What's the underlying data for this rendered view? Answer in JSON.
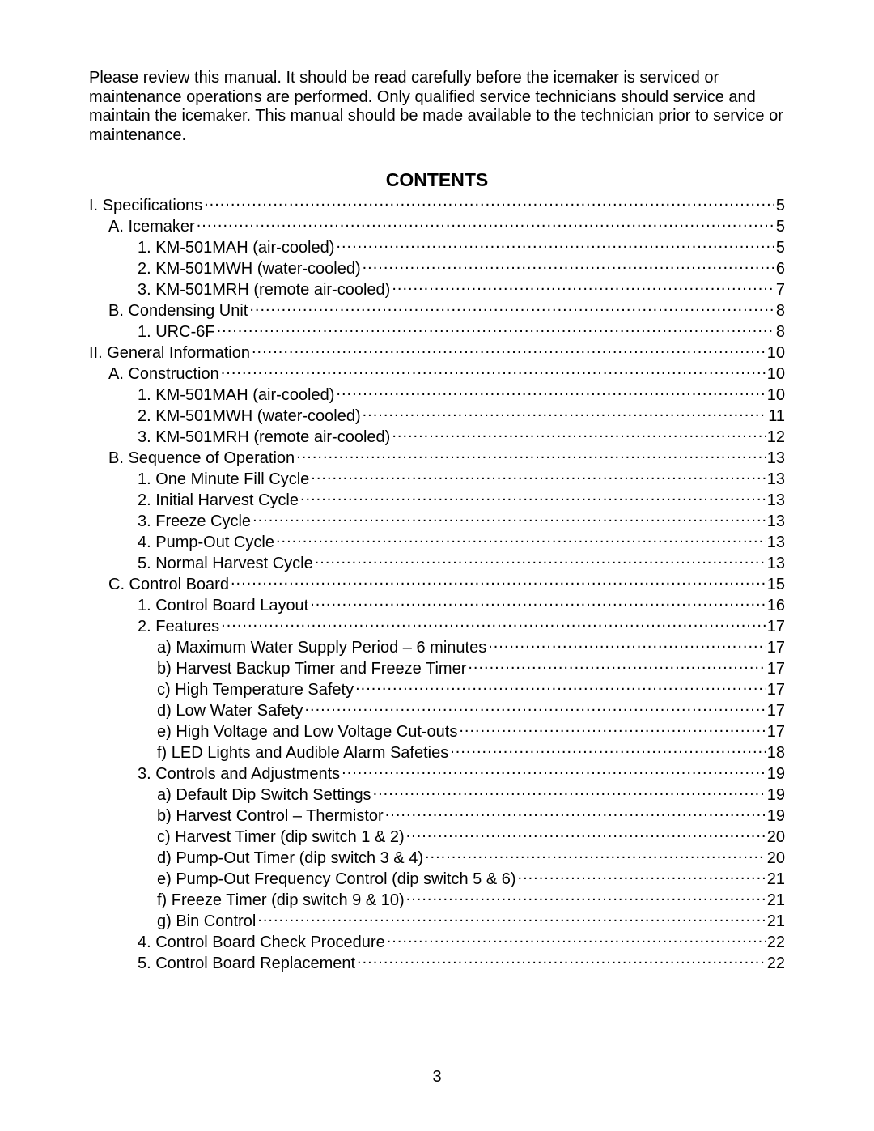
{
  "intro_paragraph": "Please review this manual. It should be read carefully before the icemaker is serviced or maintenance operations are performed. Only qualified service technicians should service and maintain the icemaker. This manual should be made available to the technician prior to service or maintenance.",
  "contents_title": "CONTENTS",
  "page_number": "3",
  "toc": [
    {
      "label": "I. Specifications",
      "page": "5",
      "indent": 0
    },
    {
      "label": "A. Icemaker",
      "page": "5",
      "indent": 1
    },
    {
      "label": "1. KM-501MAH (air-cooled)",
      "page": "5",
      "indent": 2
    },
    {
      "label": "2. KM-501MWH (water-cooled)",
      "page": "6",
      "indent": 2
    },
    {
      "label": "3. KM-501MRH (remote air-cooled)",
      "page": "7",
      "indent": 2
    },
    {
      "label": "B. Condensing Unit",
      "page": "8",
      "indent": 1
    },
    {
      "label": "1. URC-6F",
      "page": "8",
      "indent": 2
    },
    {
      "label": "II. General Information",
      "page": "10",
      "indent": 0
    },
    {
      "label": "A. Construction",
      "page": "10",
      "indent": 1
    },
    {
      "label": "1. KM-501MAH (air-cooled)",
      "page": "10",
      "indent": 2
    },
    {
      "label": "2. KM-501MWH (water-cooled)",
      "page": "11",
      "indent": 2
    },
    {
      "label": "3. KM-501MRH (remote air-cooled)",
      "page": "12",
      "indent": 2
    },
    {
      "label": "B. Sequence of Operation",
      "page": "13",
      "indent": 1
    },
    {
      "label": "1. One Minute Fill Cycle",
      "page": "13",
      "indent": 2
    },
    {
      "label": "2. Initial Harvest Cycle",
      "page": "13",
      "indent": 2
    },
    {
      "label": "3. Freeze Cycle",
      "page": "13",
      "indent": 2
    },
    {
      "label": "4. Pump-Out Cycle",
      "page": "13",
      "indent": 2
    },
    {
      "label": "5. Normal Harvest Cycle",
      "page": "13",
      "indent": 2
    },
    {
      "label": "C. Control Board",
      "page": "15",
      "indent": 1
    },
    {
      "label": "1. Control Board Layout",
      "page": "16",
      "indent": 2
    },
    {
      "label": "2. Features",
      "page": "17",
      "indent": 2
    },
    {
      "label": "a) Maximum Water Supply Period – 6 minutes",
      "page": "17",
      "indent": 3
    },
    {
      "label": "b) Harvest Backup Timer and Freeze Timer",
      "page": "17",
      "indent": 3
    },
    {
      "label": "c) High Temperature Safety",
      "page": "17",
      "indent": 3
    },
    {
      "label": "d) Low Water Safety",
      "page": "17",
      "indent": 3
    },
    {
      "label": "e) High Voltage and Low Voltage Cut-outs",
      "page": "17",
      "indent": 3
    },
    {
      "label": "f) LED Lights and Audible Alarm Safeties",
      "page": "18",
      "indent": 3
    },
    {
      "label": "3. Controls and Adjustments",
      "page": "19",
      "indent": 2
    },
    {
      "label": "a) Default Dip Switch Settings",
      "page": "19",
      "indent": 3
    },
    {
      "label": "b) Harvest Control – Thermistor",
      "page": "19",
      "indent": 3
    },
    {
      "label": "c) Harvest Timer (dip switch 1 & 2)",
      "page": "20",
      "indent": 3
    },
    {
      "label": "d) Pump-Out Timer (dip switch 3 & 4)",
      "page": "20",
      "indent": 3
    },
    {
      "label": "e) Pump-Out Frequency Control (dip switch 5 & 6)",
      "page": "21",
      "indent": 3
    },
    {
      "label": "f) Freeze Timer (dip switch 9 & 10)",
      "page": "21",
      "indent": 3
    },
    {
      "label": "g) Bin Control",
      "page": "21",
      "indent": 3
    },
    {
      "label": "4. Control Board Check Procedure",
      "page": "22",
      "indent": 2
    },
    {
      "label": "5. Control Board Replacement",
      "page": "22",
      "indent": 2
    }
  ]
}
